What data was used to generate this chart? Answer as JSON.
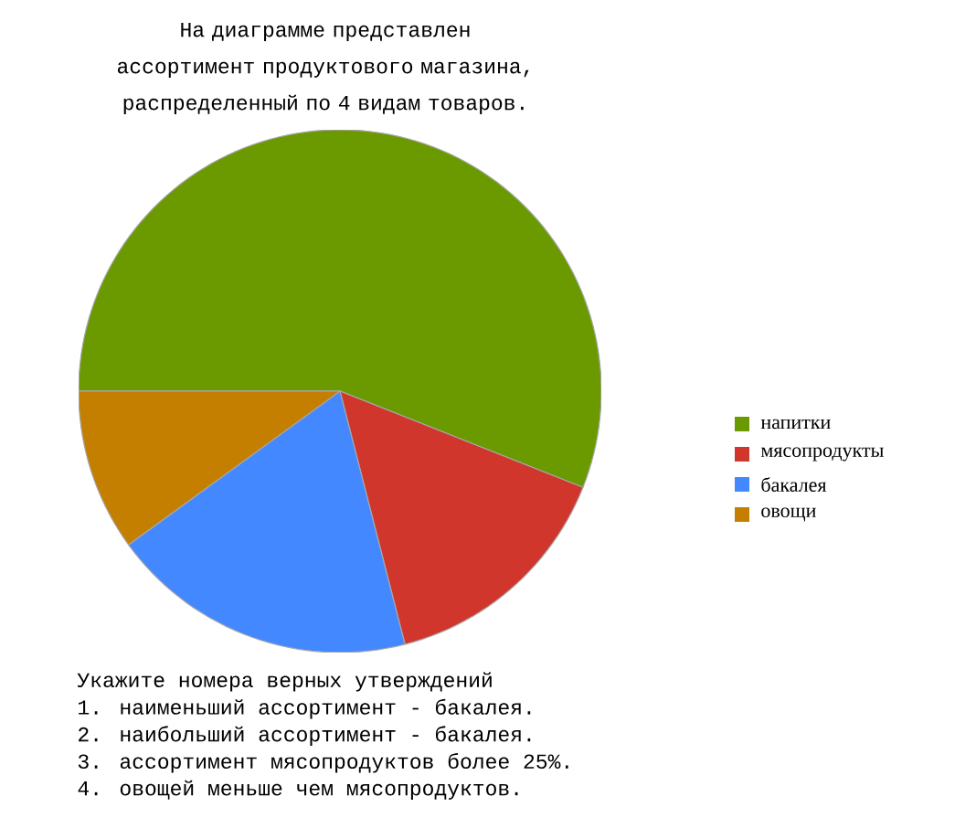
{
  "chart_data": {
    "type": "pie",
    "title": "На диаграмме представлен ассортимент продуктового магазина, распределенный по 4 видам товаров.",
    "categories": [
      "напитки",
      "мясопродукты",
      "бакалея",
      "овощи"
    ],
    "values": [
      56,
      15,
      19,
      10
    ],
    "colors": [
      "#6a9a00",
      "#d0362c",
      "#4488ff",
      "#c47f00"
    ],
    "legend": "right",
    "annotations": [
      "Укажите номера верных утверждений",
      "1. наименьший ассортимент - бакалея.",
      "2. наибольший ассортимент - бакалея.",
      "3. ассортимент мясопродуктов более 25%.",
      "4. овощей меньше чем мясопродуктов."
    ]
  }
}
